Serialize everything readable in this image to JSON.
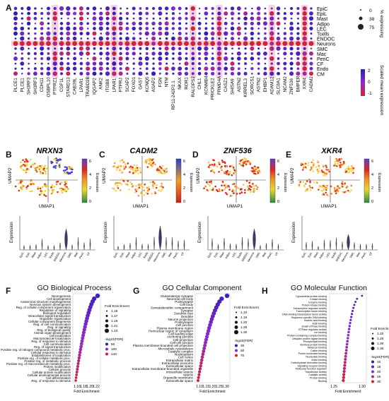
{
  "panels": {
    "A": "A",
    "B": "B",
    "C": "C",
    "D": "D",
    "E": "E",
    "F": "F",
    "G": "G",
    "H": "H"
  },
  "dotplot": {
    "cell_types": [
      "EpiC",
      "EpiL",
      "Mast",
      "Adipo",
      "LEC",
      "Tcells",
      "ENDOC",
      "Neurons",
      "SMC",
      "Mac",
      "PeriC",
      "CF",
      "Endo",
      "CM"
    ],
    "genes_row1": [
      "PLCE1",
      "SH3RF3",
      "CDH11",
      "PTPRZ1",
      "STARD13",
      "LPAR1",
      "IQGAP2",
      "ITGB8",
      "PTPRJ",
      "FOXO1",
      "KCNQ5",
      "FGN",
      "RP11-242P2.1",
      "ROR1",
      "CHL1",
      "PRICKLE2",
      "CASZ1",
      "ASTN2",
      "SORCS1",
      "EHBP1",
      "SLC8A1",
      "ZNF536",
      "XXR4",
      "NRXN3"
    ],
    "genes_row2": [
      "PLCE1",
      "SH3RF3",
      "OSBPL10",
      "CGF1L",
      "CAB39L",
      "TRABD2B",
      "ANK2",
      "LPAR1",
      "SCAP2",
      "GAS7",
      "ASAP2",
      "NTM",
      "NKAX",
      "RALGPS2",
      "KCNMB4",
      "FRMD4A",
      "SHISA9",
      "KIRREL3",
      "ASTN2",
      "ADAM12",
      "NCAM2",
      "BMPER",
      "CADM2",
      "NRXN3"
    ],
    "legend_pct_title": "% expressing",
    "legend_pct_values": [
      "0",
      "38",
      "75"
    ],
    "legend_expr_title": "Scaled mean expression",
    "legend_expr_values": [
      "2",
      "0",
      "-1"
    ]
  },
  "umaps": [
    {
      "gene": "NRXN3",
      "x": "UMAP1",
      "y": "UMAP2",
      "scale_title": "Expression",
      "scale": [
        "0",
        "2",
        "4",
        "6"
      ]
    },
    {
      "gene": "CADM2",
      "x": "UMAP1",
      "y": "UMAP2",
      "scale_title": "Expression",
      "scale": [
        "0",
        "2",
        "4",
        "6"
      ]
    },
    {
      "gene": "ZNF536",
      "x": "UMAP1",
      "y": "UMAP2",
      "scale_title": "Expression",
      "scale": [
        "0",
        "2",
        "4",
        "6"
      ]
    },
    {
      "gene": "XKR4",
      "x": "UMAP1",
      "y": "UMAP2",
      "scale_title": "Expression",
      "scale": [
        "0",
        "2",
        "4",
        "6"
      ]
    }
  ],
  "violin_ylabel": "Expression",
  "go": {
    "bp": {
      "title": "GO Biological Process",
      "xlabel": "Fold Enrichment",
      "ticks": [
        "1.16",
        "1.18",
        "1.20",
        "1.22"
      ],
      "legend_size_title": "Fold Enrichment",
      "legend_size": [
        "1.15",
        "1.17",
        "1.19",
        "1.21",
        "1.23"
      ],
      "legend_color_title": "-log10(FDR)",
      "legend_color": [
        "60",
        "100",
        "140"
      ],
      "terms": [
        "Neurogenesis",
        "Cell development",
        "Anatomical structure morphogenesis",
        "Nervous system development",
        "Reg. of cellular component organization",
        "Regulation of signaling",
        "Biological regulation",
        "Intracellular signal transduction",
        "Organelle organization",
        "Cellular component biogenesis",
        "Reg. of cell communication",
        "Reg. of signaling",
        "Reg. of biological quality",
        "Animal organ development",
        "Cell localization",
        "Macromolecule localization",
        "Reg. of response to stimulus",
        "Cell communication",
        "Reg. of signal transduction",
        "Positive reg. of nitrogen compound metabolic proc.",
        "Cellular response to stimulus",
        "Establishment of localization",
        "Positive reg. of cellular metabolic proc.",
        "Positive reg. of metabolic process",
        "Positive reg. of macromolecule metabolic proc.",
        "Protein modification",
        "Cellular process",
        "Cellular protein modification",
        "Cellular developmental process",
        "Cell differentiation",
        "Reg. of response to stimulus"
      ]
    },
    "cc": {
      "title": "GO Cellular Component",
      "xlabel": "Fold Enrichment",
      "ticks": [
        "1.10",
        "1.15",
        "1.20",
        "1.25",
        "1.30"
      ],
      "legend_size_title": "Fold Enrichment",
      "legend_size": [
        "1.10",
        "1.15",
        "1.20",
        "1.25",
        "1.30"
      ],
      "legend_color_title": "-log10(FDR)",
      "legend_color": [
        "30",
        "50",
        "70"
      ],
      "terms": [
        "Glutamatergic synapse",
        "Neuronal cell body",
        "Postsynapse",
        "Cell body",
        "Somatodendritic compartment",
        "Synapse",
        "Dendritic tree",
        "Dendrite",
        "Neuron projection",
        "Postsynapse",
        "Cell junction",
        "Plasma membrane region",
        "Perinuclear region of cytoplasm",
        "Cell leading edge",
        "Anchoring junction",
        "Cell projection",
        "Cell-cell junction",
        "Plasma membrane bounded cell projection",
        "Microtubule cytoskeleton",
        "Catalytic complex",
        "Nucleoplasm",
        "Cell cortex",
        "Extracellular matrix",
        "Extracellular exosome",
        "Extracellular space",
        "Extracellular membrane-bounded organelle",
        "Intracellular vesicle",
        "Vesicle",
        "Organelle membrane",
        "Extracellular space"
      ]
    },
    "mf": {
      "title": "GO Molecular Function",
      "xlabel": "Fold Enrichment",
      "ticks": [
        "1.25",
        "1.30"
      ],
      "legend_size_title": "Fold Enrichment",
      "legend_size": [
        "1.20",
        "1.25",
        "1.30",
        "1.35"
      ],
      "legend_color_title": "-log10(FDR)",
      "legend_color": [
        "10",
        "15",
        "20",
        "25",
        "30"
      ],
      "terms": [
        "Cytoskeletal protein binding",
        "Kinase binding",
        "Enzyme binding",
        "Protein kinase binding",
        "Transcription regulator activity",
        "Transcription factor binding",
        "DNA-binding transcription factor activity",
        "Sequence-specific DNA binding",
        "Nucleic acid binding",
        "Actin binding",
        "Small GTPase binding",
        "GTPase regulator activity",
        "Ion binding",
        "Protein-containing complex binding",
        "Ubiquitin protein ligase binding",
        "Phospholipid binding",
        "Identical protein binding",
        "Metal ion binding",
        "Cation binding",
        "Purine nucleotide binding",
        "Nucleotide binding",
        "Anion binding",
        "Carbohydrate derivative binding",
        "Signaling receptor binding",
        "Molecular function regulator",
        "Transferase activity",
        "Catalytic activity",
        "Protein binding",
        "Binding"
      ]
    }
  },
  "colors": {
    "dot_low": "#2b1fb0",
    "dot_mid": "#8b2bd0",
    "dot_high": "#d8232a",
    "highlight": "#f4c6da"
  }
}
